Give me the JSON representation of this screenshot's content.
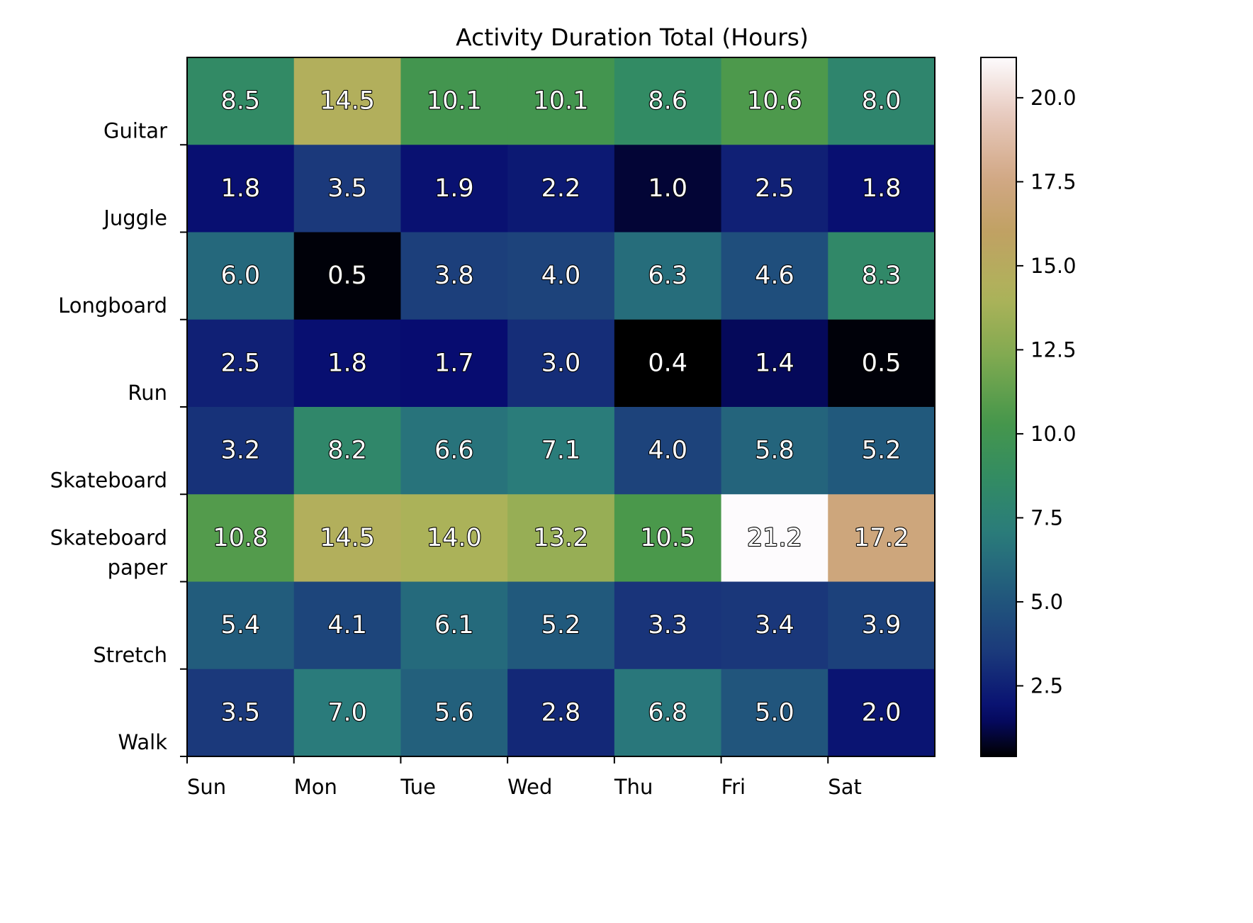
{
  "chart_data": {
    "type": "heatmap",
    "title": "Activity Duration Total (Hours)",
    "xlabel": "",
    "ylabel": "",
    "x_categories": [
      "Sun",
      "Mon",
      "Tue",
      "Wed",
      "Thu",
      "Fri",
      "Sat"
    ],
    "y_categories": [
      "Guitar",
      "Juggle",
      "Longboard",
      "Run",
      "Skateboard",
      "Skateboard\npaper",
      "Stretch",
      "Walk"
    ],
    "values": [
      [
        8.5,
        14.5,
        10.1,
        10.1,
        8.6,
        10.6,
        8.0
      ],
      [
        1.8,
        3.5,
        1.9,
        2.2,
        1.0,
        2.5,
        1.8
      ],
      [
        6.0,
        0.5,
        3.8,
        4.0,
        6.3,
        4.6,
        8.3
      ],
      [
        2.5,
        1.8,
        1.7,
        3.0,
        0.4,
        1.4,
        0.5
      ],
      [
        3.2,
        8.2,
        6.6,
        7.1,
        4.0,
        5.8,
        5.2
      ],
      [
        10.8,
        14.5,
        14.0,
        13.2,
        10.5,
        21.2,
        17.2
      ],
      [
        5.4,
        4.1,
        6.1,
        5.2,
        3.3,
        3.4,
        3.9
      ],
      [
        3.5,
        7.0,
        5.6,
        2.8,
        6.8,
        5.0,
        2.0
      ]
    ],
    "value_format": "0.1f",
    "colormap": "gist_earth",
    "colorbar": {
      "range": [
        0.4,
        21.2
      ],
      "ticks": [
        2.5,
        5.0,
        7.5,
        10.0,
        12.5,
        15.0,
        17.5,
        20.0
      ],
      "tick_labels": [
        "2.5",
        "5.0",
        "7.5",
        "10.0",
        "12.5",
        "15.0",
        "17.5",
        "20.0"
      ]
    },
    "grid": false
  }
}
